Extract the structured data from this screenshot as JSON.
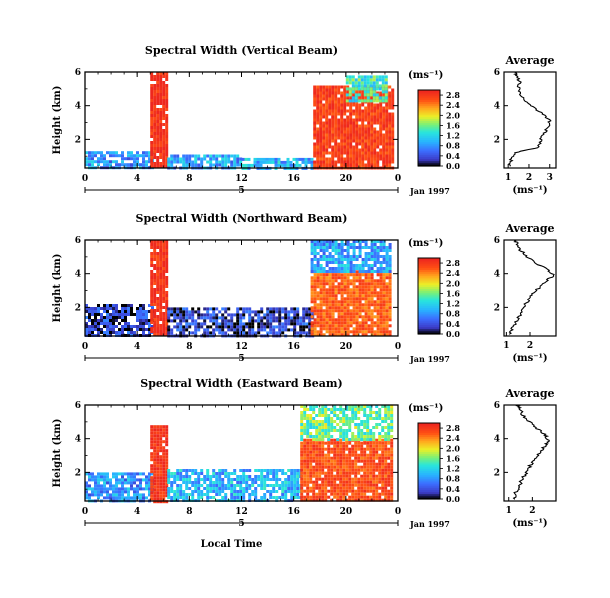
{
  "figure": {
    "xlabel": "Local Time",
    "date_label": "Jan 1997",
    "day_label": "5",
    "unit_label": "(ms⁻¹)",
    "avg_title": "Average"
  },
  "chart_data": [
    {
      "type": "heatmap",
      "title": "Spectral Width (Vertical Beam)",
      "xlabel": "",
      "ylabel": "Height (km)",
      "x_ticks": [
        "0",
        "4",
        "8",
        "12",
        "16",
        "20",
        "0"
      ],
      "x_tick_values": [
        0,
        4,
        8,
        12,
        16,
        20,
        24
      ],
      "xlim": [
        0,
        24
      ],
      "y_ticks": [
        "2",
        "4",
        "6"
      ],
      "y_tick_values": [
        2,
        4,
        6
      ],
      "ylim": [
        0.3,
        6
      ],
      "colorbar_ticks": [
        "0.0",
        "0.4",
        "0.8",
        "1.2",
        "1.6",
        "2.0",
        "2.4",
        "2.8"
      ],
      "colorbar_tick_values": [
        0.0,
        0.4,
        0.8,
        1.2,
        1.6,
        2.0,
        2.4,
        2.8
      ],
      "colorbar_range": [
        0.0,
        3.0
      ],
      "regions": [
        {
          "x": [
            0,
            5.2
          ],
          "y": [
            0.3,
            1.3
          ],
          "value": 0.8
        },
        {
          "x": [
            5.0,
            6.3
          ],
          "y": [
            0.3,
            6.0
          ],
          "value": 2.9
        },
        {
          "x": [
            6.3,
            12
          ],
          "y": [
            0.3,
            1.1
          ],
          "value": 0.9
        },
        {
          "x": [
            12,
            17.5
          ],
          "y": [
            0.3,
            0.9
          ],
          "value": 1.0
        },
        {
          "x": [
            17.5,
            23.5
          ],
          "y": [
            0.3,
            5.2
          ],
          "value": 2.8
        },
        {
          "x": [
            20,
            23
          ],
          "y": [
            4.2,
            5.8
          ],
          "value": 1.4
        }
      ]
    },
    {
      "type": "heatmap",
      "title": "Spectral Width (Northward Beam)",
      "xlabel": "",
      "ylabel": "Height (km)",
      "x_ticks": [
        "0",
        "4",
        "8",
        "12",
        "16",
        "20",
        "0"
      ],
      "x_tick_values": [
        0,
        4,
        8,
        12,
        16,
        20,
        24
      ],
      "xlim": [
        0,
        24
      ],
      "y_ticks": [
        "2",
        "4",
        "6"
      ],
      "y_tick_values": [
        2,
        4,
        6
      ],
      "ylim": [
        0.3,
        6
      ],
      "colorbar_ticks": [
        "0.0",
        "0.4",
        "0.8",
        "1.2",
        "1.6",
        "2.0",
        "2.4",
        "2.8"
      ],
      "colorbar_tick_values": [
        0.0,
        0.4,
        0.8,
        1.2,
        1.6,
        2.0,
        2.4,
        2.8
      ],
      "colorbar_range": [
        0.0,
        3.0
      ],
      "regions": [
        {
          "x": [
            0,
            5.2
          ],
          "y": [
            0.3,
            2.2
          ],
          "value": 0.3
        },
        {
          "x": [
            5.0,
            6.3
          ],
          "y": [
            0.3,
            6.0
          ],
          "value": 2.9
        },
        {
          "x": [
            6.3,
            17.5
          ],
          "y": [
            0.3,
            2.0
          ],
          "value": 0.3
        },
        {
          "x": [
            17.3,
            23.5
          ],
          "y": [
            0.3,
            4.2
          ],
          "value": 2.6
        },
        {
          "x": [
            17.3,
            23.5
          ],
          "y": [
            4.2,
            6.0
          ],
          "value": 0.9
        }
      ]
    },
    {
      "type": "heatmap",
      "title": "Spectral Width (Eastward Beam)",
      "xlabel": "Local Time",
      "ylabel": "Height (km)",
      "x_ticks": [
        "0",
        "4",
        "8",
        "12",
        "16",
        "20",
        "0"
      ],
      "x_tick_values": [
        0,
        4,
        8,
        12,
        16,
        20,
        24
      ],
      "xlim": [
        0,
        24
      ],
      "y_ticks": [
        "2",
        "4",
        "6"
      ],
      "y_tick_values": [
        2,
        4,
        6
      ],
      "ylim": [
        0.3,
        6
      ],
      "colorbar_ticks": [
        "0.0",
        "0.4",
        "0.8",
        "1.2",
        "1.6",
        "2.0",
        "2.4",
        "2.8"
      ],
      "colorbar_tick_values": [
        0.0,
        0.4,
        0.8,
        1.2,
        1.6,
        2.0,
        2.4,
        2.8
      ],
      "colorbar_range": [
        0.0,
        3.0
      ],
      "regions": [
        {
          "x": [
            0,
            5.2
          ],
          "y": [
            0.3,
            2.0
          ],
          "value": 0.8
        },
        {
          "x": [
            5.0,
            6.3
          ],
          "y": [
            0.3,
            4.8
          ],
          "value": 2.9
        },
        {
          "x": [
            6.3,
            16.5
          ],
          "y": [
            0.3,
            2.2
          ],
          "value": 1.0
        },
        {
          "x": [
            16.5,
            23.5
          ],
          "y": [
            0.3,
            4.0
          ],
          "value": 2.7
        },
        {
          "x": [
            16.5,
            23.5
          ],
          "y": [
            4.0,
            6.0
          ],
          "value": 1.6
        }
      ]
    },
    {
      "type": "line",
      "title": "Average",
      "xlabel": "(ms⁻¹)",
      "x_ticks": [
        "1",
        "2",
        "3"
      ],
      "x_tick_values": [
        1,
        2,
        3
      ],
      "xlim": [
        0.8,
        3.3
      ],
      "y_ticks": [
        "2",
        "4",
        "6"
      ],
      "y_tick_values": [
        2,
        4,
        6
      ],
      "ylim": [
        0.3,
        6
      ],
      "x": [
        1.05,
        1.15,
        1.3,
        2.4,
        2.55,
        2.7,
        2.9,
        3.0,
        2.7,
        2.3,
        1.9,
        1.6,
        1.5,
        1.55,
        1.4,
        1.3
      ],
      "y": [
        0.4,
        0.8,
        1.2,
        1.5,
        1.9,
        2.3,
        2.7,
        3.1,
        3.5,
        3.8,
        4.2,
        4.6,
        5.0,
        5.4,
        5.8,
        6.0
      ]
    },
    {
      "type": "line",
      "title": "Average",
      "xlabel": "(ms⁻¹)",
      "x_ticks": [
        "1",
        "2"
      ],
      "x_tick_values": [
        1,
        2
      ],
      "xlim": [
        0.9,
        3.1
      ],
      "y_ticks": [
        "2",
        "4",
        "6"
      ],
      "y_tick_values": [
        2,
        4,
        6
      ],
      "ylim": [
        0.3,
        6
      ],
      "x": [
        1.15,
        1.25,
        1.45,
        1.6,
        1.75,
        1.9,
        2.1,
        2.4,
        2.7,
        3.0,
        2.8,
        2.3,
        1.9,
        1.6,
        1.45,
        1.35
      ],
      "y": [
        0.4,
        0.8,
        1.2,
        1.6,
        2.0,
        2.4,
        2.8,
        3.2,
        3.6,
        3.9,
        4.2,
        4.6,
        5.0,
        5.4,
        5.8,
        6.0
      ]
    },
    {
      "type": "line",
      "title": "Average",
      "xlabel": "(ms⁻¹)",
      "x_ticks": [
        "1",
        "2"
      ],
      "x_tick_values": [
        1,
        2
      ],
      "xlim": [
        0.8,
        3.0
      ],
      "y_ticks": [
        "2",
        "4",
        "6"
      ],
      "y_tick_values": [
        2,
        4,
        6
      ],
      "ylim": [
        0.3,
        6
      ],
      "x": [
        1.2,
        1.3,
        1.45,
        1.55,
        1.75,
        1.9,
        2.1,
        2.3,
        2.55,
        2.7,
        2.55,
        2.2,
        1.9,
        1.6,
        1.45,
        1.35
      ],
      "y": [
        0.4,
        0.8,
        1.2,
        1.6,
        2.0,
        2.4,
        2.8,
        3.2,
        3.6,
        3.9,
        4.2,
        4.6,
        5.0,
        5.4,
        5.8,
        6.0
      ]
    }
  ]
}
